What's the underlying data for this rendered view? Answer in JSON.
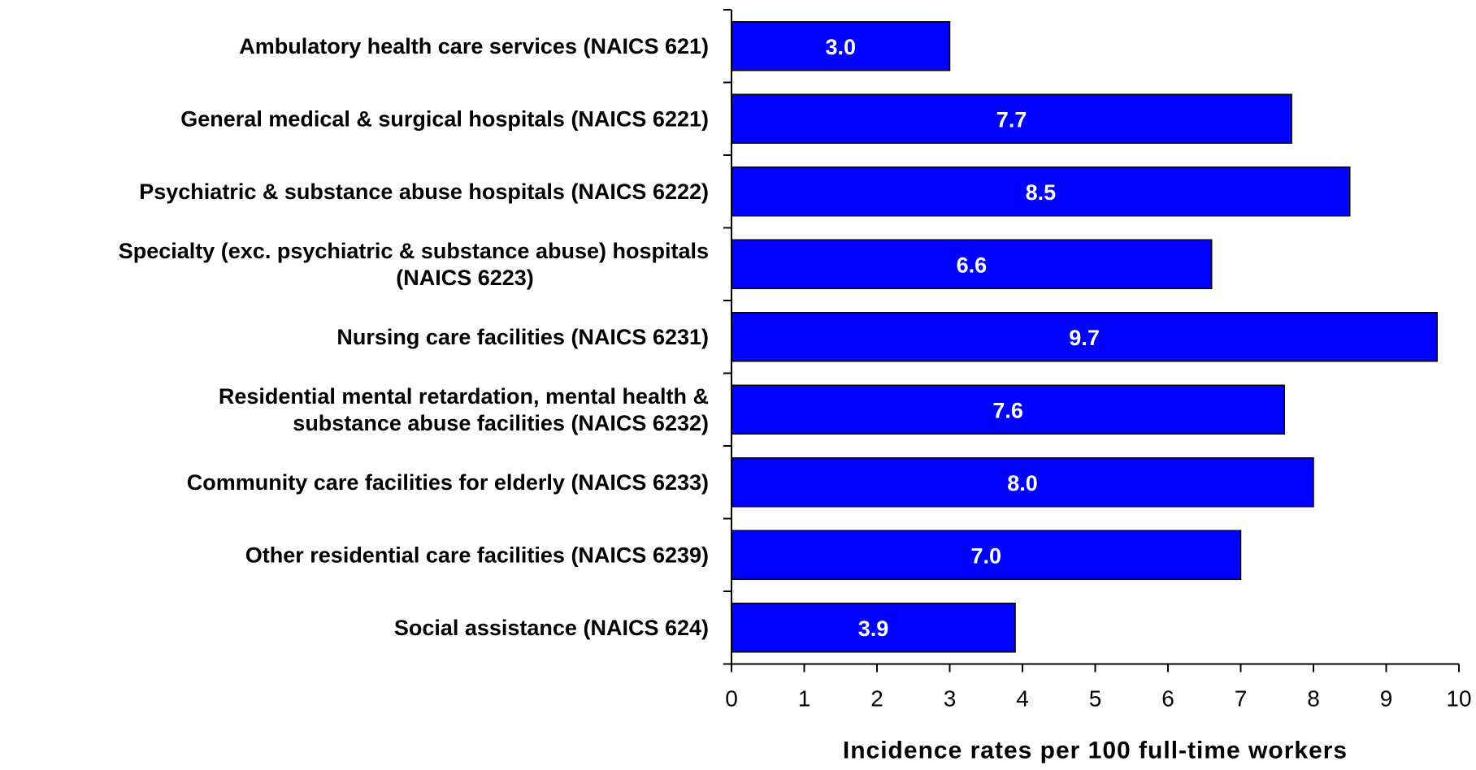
{
  "colors": {
    "bar_fill": "#0000ff",
    "bar_stroke": "#000000",
    "data_label": "#ffffff",
    "axis": "#000000",
    "background": "#ffffff"
  },
  "chart_data": {
    "type": "bar",
    "orientation": "horizontal",
    "title": "",
    "xlabel": "Incidence rates per 100 full-time workers",
    "ylabel": "",
    "xlim": [
      0,
      10
    ],
    "xticks": [
      "0",
      "1",
      "2",
      "3",
      "4",
      "5",
      "6",
      "7",
      "8",
      "9",
      "10"
    ],
    "grid": false,
    "legend": "none",
    "categories": [
      [
        "Ambulatory health care services (NAICS 621)"
      ],
      [
        "General medical & surgical hospitals (NAICS 6221)"
      ],
      [
        "Psychiatric & substance abuse hospitals (NAICS 6222)"
      ],
      [
        "Specialty (exc. psychiatric & substance abuse) hospitals",
        "(NAICS 6223)"
      ],
      [
        "Nursing care facilities (NAICS 6231)"
      ],
      [
        "Residential mental retardation, mental health &",
        "substance abuse facilities (NAICS 6232)"
      ],
      [
        "Community care facilities for elderly (NAICS 6233)"
      ],
      [
        "Other residential care facilities (NAICS 6239)"
      ],
      [
        "Social assistance (NAICS 624)"
      ]
    ],
    "values": [
      3.0,
      7.7,
      8.5,
      6.6,
      9.7,
      7.6,
      8.0,
      7.0,
      3.9
    ],
    "data_labels": [
      "3.0",
      "7.7",
      "8.5",
      "6.6",
      "9.7",
      "7.6",
      "8.0",
      "7.0",
      "3.9"
    ]
  }
}
